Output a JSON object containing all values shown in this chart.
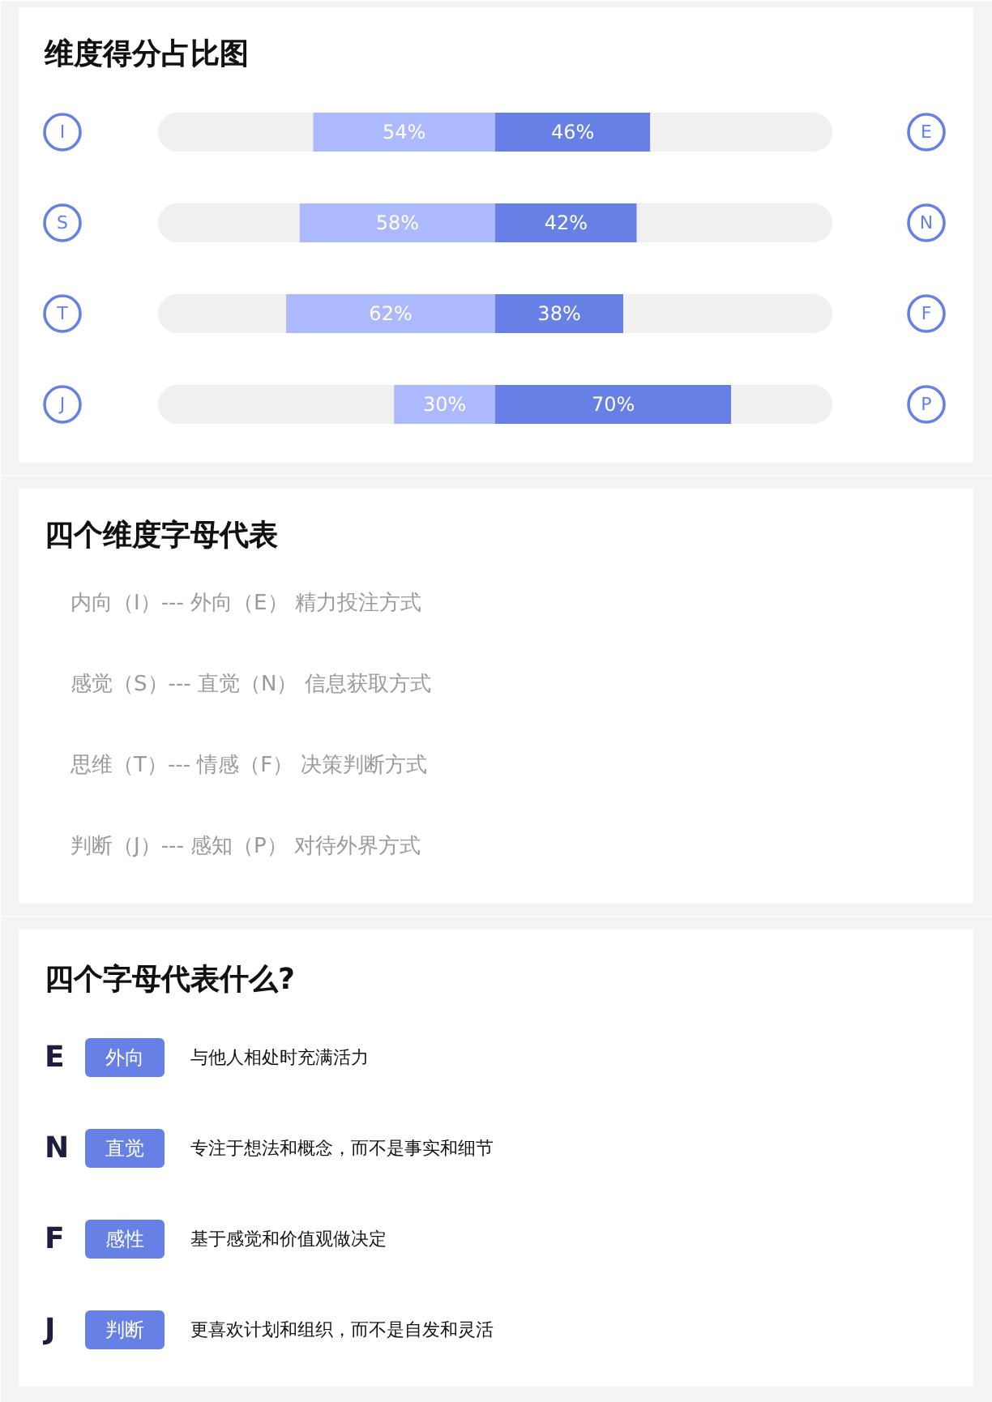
{
  "chart_data": [
    {
      "type": "bar",
      "orientation": "horizontal",
      "stacked": true,
      "title": "维度得分占比图",
      "categories": [
        "I",
        "S",
        "T",
        "J"
      ],
      "y2_categories": [
        "E",
        "N",
        "F",
        "P"
      ],
      "tick_labels": "y",
      "series": [
        {
          "color": "#f0f0f0",
          "values": [
            46,
            42,
            38,
            70
          ]
        },
        {
          "color": "#acb9ff",
          "values": [
            54,
            58,
            62,
            30
          ],
          "value_labels": [
            "54%",
            "58%",
            "62%",
            "30%"
          ]
        },
        {
          "color": "#6680e5",
          "values": [
            46,
            42,
            38,
            70
          ],
          "value_labels": [
            "46%",
            "42%",
            "38%",
            "70%"
          ]
        },
        {
          "color": "#f0f0f0",
          "values": [
            54,
            58,
            62,
            30
          ]
        }
      ]
    },
    {
      "type": "other",
      "title": "四个维度字母代表",
      "annotations": [
        "内向（I）--- 外向（E） 精力投注方式",
        "感觉（S）--- 直觉（N） 信息获取方式",
        "思维（T）--- 情感（F） 决策判断方式",
        "判断（J）--- 感知（P） 对待外界方式"
      ]
    },
    {
      "type": "other",
      "title": "四个字母代表什么?",
      "color": "#6680e5",
      "categories": [
        "E",
        "N",
        "F",
        "J"
      ],
      "annotations": [
        "外向",
        "与他人相处时充满活力",
        "直觉",
        "专注于想法和概念，而不是事实和细节",
        "感性",
        "基于感觉和价值观做决定",
        "判断",
        "更喜欢计划和组织，而不是自发和灵活"
      ]
    }
  ]
}
